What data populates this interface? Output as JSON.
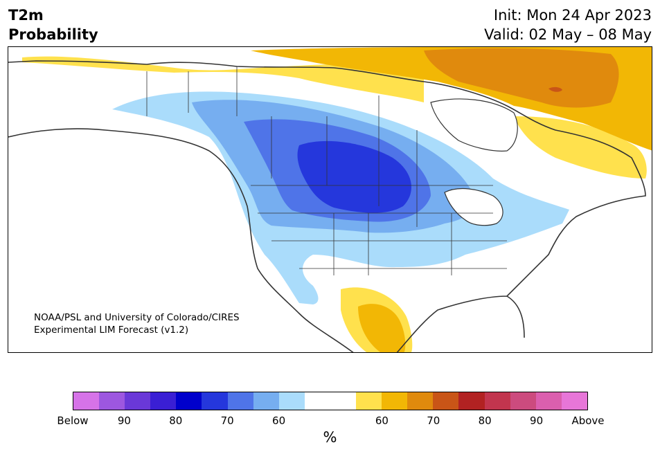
{
  "title": {
    "line1": "T2m",
    "line2": "Probability"
  },
  "header_right": {
    "init": "Init: Mon 24 Apr 2023",
    "valid": "Valid: 02 May – 08 May"
  },
  "credit": {
    "line1": "NOAA/PSL and University of Colorado/CIRES",
    "line2": "Experimental LIM Forecast (v1.2)"
  },
  "colorbar": {
    "colors": [
      "#d673e8",
      "#9d57e0",
      "#6a38d8",
      "#3a1fd4",
      "#0000cc",
      "#2537dc",
      "#4f74e8",
      "#76aef0",
      "#aadcfb",
      "#ffffff",
      "#ffffff",
      "#ffe14d",
      "#f2b705",
      "#e08a0d",
      "#c95517",
      "#b22222",
      "#c2354e",
      "#cc4b7e",
      "#db5fae",
      "#e776d8"
    ],
    "labels": [
      "Below",
      "90",
      "80",
      "70",
      "60",
      "60",
      "70",
      "80",
      "90",
      "Above"
    ],
    "unit": "%"
  },
  "map_colors": {
    "cold_60": "#aadcfb",
    "cold_70": "#76aef0",
    "cold_80": "#4f74e8",
    "cold_90": "#2537dc",
    "warm_60": "#ffe14d",
    "warm_70": "#f2b705",
    "warm_80": "#e08a0d",
    "warm_90": "#c95517",
    "coast": "#333333"
  }
}
